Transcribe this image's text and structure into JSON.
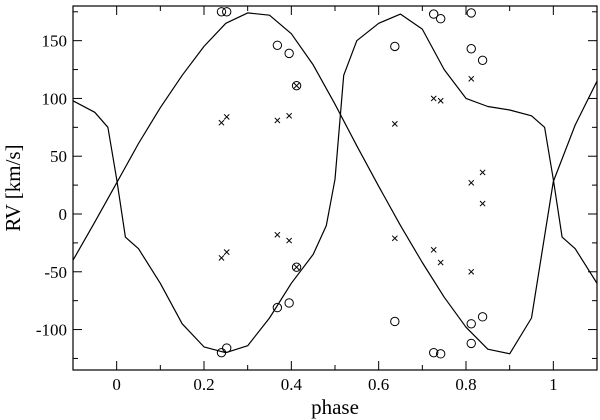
{
  "chart_data": {
    "type": "scatter",
    "title": "",
    "xlabel": "phase",
    "ylabel": "RV [km/s]",
    "xlim": [
      -0.1,
      1.1
    ],
    "ylim": [
      -135,
      180
    ],
    "x_ticks": [
      0,
      0.2,
      0.4,
      0.6,
      0.8,
      1
    ],
    "x_tick_labels": [
      "0",
      "0.2",
      "0.4",
      "0.6",
      "0.8",
      "1"
    ],
    "y_ticks": [
      -100,
      -50,
      0,
      50,
      100,
      150
    ],
    "y_tick_labels": [
      "-100",
      "-50",
      "0",
      "50",
      "100",
      "150"
    ],
    "grid": false,
    "legend": "none",
    "colors": {
      "line": "#000000",
      "marker": "#000000",
      "background": "#ffffff"
    },
    "series": [
      {
        "marker": "open-circle",
        "points": [
          [
            0.24,
            175
          ],
          [
            0.252,
            175
          ],
          [
            0.368,
            146
          ],
          [
            0.395,
            139
          ],
          [
            0.412,
            111
          ],
          [
            0.637,
            145
          ],
          [
            0.726,
            173
          ],
          [
            0.742,
            169
          ],
          [
            0.812,
            174
          ],
          [
            0.812,
            143
          ],
          [
            0.838,
            133
          ],
          [
            0.24,
            -120
          ],
          [
            0.252,
            -116
          ],
          [
            0.368,
            -81
          ],
          [
            0.395,
            -77
          ],
          [
            0.412,
            -46
          ],
          [
            0.637,
            -93
          ],
          [
            0.726,
            -120
          ],
          [
            0.742,
            -121
          ],
          [
            0.812,
            -95
          ],
          [
            0.812,
            -112
          ],
          [
            0.838,
            -89
          ]
        ]
      },
      {
        "marker": "cross",
        "points": [
          [
            0.24,
            79
          ],
          [
            0.252,
            84
          ],
          [
            0.368,
            81
          ],
          [
            0.395,
            85
          ],
          [
            0.412,
            111
          ],
          [
            0.637,
            78
          ],
          [
            0.726,
            100
          ],
          [
            0.742,
            98
          ],
          [
            0.812,
            117
          ],
          [
            0.812,
            27
          ],
          [
            0.838,
            36
          ],
          [
            0.838,
            9
          ],
          [
            0.24,
            -38
          ],
          [
            0.252,
            -33
          ],
          [
            0.368,
            -18
          ],
          [
            0.395,
            -23
          ],
          [
            0.412,
            -46
          ],
          [
            0.637,
            -21
          ],
          [
            0.726,
            -31
          ],
          [
            0.742,
            -42
          ],
          [
            0.812,
            -50
          ]
        ]
      },
      {
        "marker": "line",
        "x": [
          -0.1,
          -0.05,
          0,
          0.05,
          0.1,
          0.15,
          0.2,
          0.25,
          0.3,
          0.35,
          0.4,
          0.45,
          0.5,
          0.55,
          0.6,
          0.65,
          0.7,
          0.75,
          0.8,
          0.85,
          0.9,
          0.95,
          1,
          1.05,
          1.1
        ],
        "y": [
          -40,
          -7,
          27,
          61,
          92,
          120,
          145,
          165,
          174,
          172,
          156,
          129,
          95,
          59,
          24,
          -10,
          -42,
          -72,
          -98,
          -117,
          -121,
          -90,
          28,
          77,
          115
        ]
      },
      {
        "marker": "line",
        "x": [
          -0.1,
          -0.05,
          -0.02,
          0,
          0.02,
          0.05,
          0.1,
          0.15,
          0.2,
          0.25,
          0.3,
          0.35,
          0.4,
          0.45,
          0.48,
          0.5,
          0.52,
          0.55,
          0.6,
          0.65,
          0.7,
          0.75,
          0.8,
          0.85,
          0.9,
          0.95,
          0.98,
          1,
          1.02,
          1.05,
          1.1
        ],
        "y": [
          98,
          88,
          75,
          30,
          -20,
          -30,
          -60,
          -95,
          -115,
          -120,
          -114,
          -90,
          -60,
          -35,
          -10,
          30,
          120,
          150,
          165,
          173,
          160,
          125,
          100,
          93,
          90,
          85,
          75,
          30,
          -20,
          -30,
          -60
        ]
      }
    ]
  }
}
